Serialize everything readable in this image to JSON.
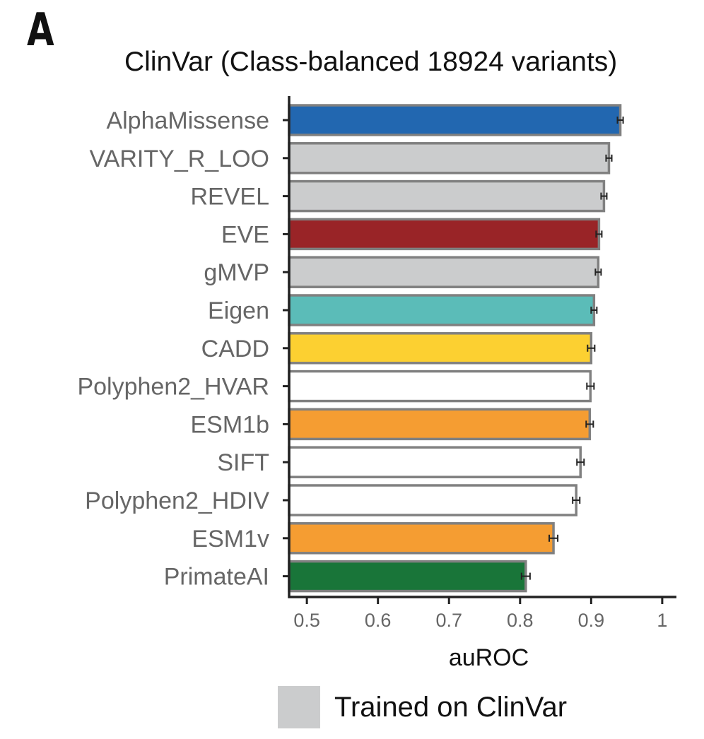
{
  "panel_letter": "A",
  "chart_data": {
    "type": "bar",
    "orientation": "horizontal",
    "title": "ClinVar (Class-balanced 18924 variants)",
    "xlabel": "auROC",
    "ylabel": "",
    "xlim": [
      0.475,
      1.02
    ],
    "xticks": [
      0.5,
      0.6,
      0.7,
      0.8,
      0.9,
      1
    ],
    "xtick_labels": [
      "0.5",
      "0.6",
      "0.7",
      "0.8",
      "0.9",
      "1"
    ],
    "grid": false,
    "legend_position": "bottom",
    "categories": [
      "AlphaMissense",
      "VARITY_R_LOO",
      "REVEL",
      "EVE",
      "gMVP",
      "Eigen",
      "CADD",
      "Polyphen2_HVAR",
      "ESM1b",
      "SIFT",
      "Polyphen2_HDIV",
      "ESM1v",
      "PrimateAI"
    ],
    "values": [
      0.941,
      0.925,
      0.918,
      0.911,
      0.91,
      0.904,
      0.9,
      0.899,
      0.898,
      0.885,
      0.879,
      0.847,
      0.808
    ],
    "errors": [
      0.004,
      0.004,
      0.004,
      0.004,
      0.004,
      0.004,
      0.005,
      0.005,
      0.005,
      0.005,
      0.005,
      0.006,
      0.006
    ],
    "colors": [
      "#2267b0",
      "#cbcccd",
      "#cbcccd",
      "#992427",
      "#cbcccd",
      "#5bbcb8",
      "#fcd031",
      "#ffffff",
      "#f59d32",
      "#ffffff",
      "#ffffff",
      "#f59d32",
      "#197539"
    ],
    "bar_outline_color": "#808080",
    "legend": [
      {
        "label": "Trained on ClinVar",
        "color": "#cbcccd"
      }
    ]
  }
}
